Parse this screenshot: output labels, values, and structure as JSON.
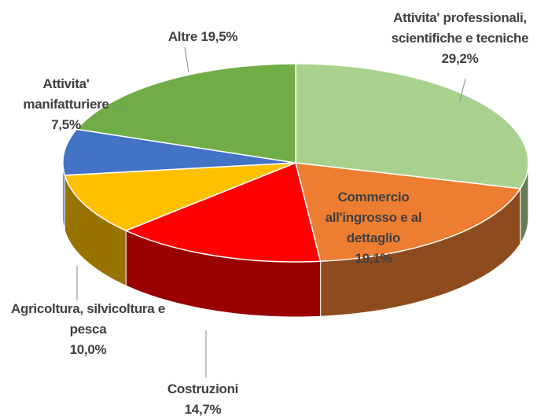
{
  "chart_data": {
    "type": "pie",
    "style": "3d",
    "categories": [
      "Attivita' professionali, scientifiche e tecniche",
      "Commercio all'ingrosso e al dettaglio",
      "Costruzioni",
      "Agricoltura, silvicoltura e pesca",
      "Attivita' manifatturiere",
      "Altre"
    ],
    "values": [
      29.2,
      19.1,
      14.7,
      10.0,
      7.5,
      19.5
    ],
    "value_labels": [
      "29,2%",
      "19,1%",
      "14,7%",
      "10,0%",
      "7,5%",
      "19,5%"
    ],
    "colors": [
      "#a9d18e",
      "#ed7d31",
      "#ff0000",
      "#ffc000",
      "#4472c4",
      "#70ad47"
    ]
  }
}
